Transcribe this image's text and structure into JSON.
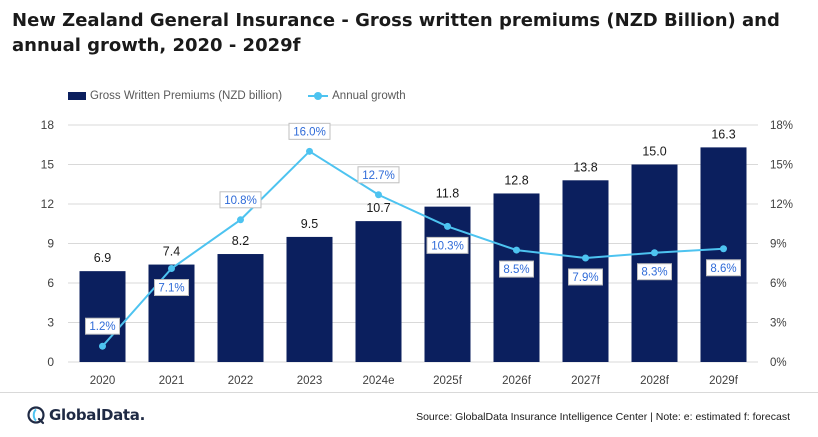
{
  "title": "New Zealand General Insurance - Gross written premiums (NZD Billion) and annual growth, 2020 - 2029f",
  "legend": {
    "bar_label": "Gross Written Premiums (NZD billion)",
    "line_label": "Annual growth"
  },
  "source": "Source: GlobalData Insurance Intelligence Center | Note: e: estimated f: forecast",
  "logo_text": "GlobalData.",
  "colors": {
    "bar": "#0b1f5e",
    "line": "#4dc3f0",
    "point_label_text": "#2f6bd8"
  },
  "chart_data": {
    "type": "bar",
    "title": "New Zealand General Insurance - Gross written premiums (NZD Billion) and annual growth, 2020 - 2029f",
    "categories": [
      "2020",
      "2021",
      "2022",
      "2023",
      "2024e",
      "2025f",
      "2026f",
      "2027f",
      "2028f",
      "2029f"
    ],
    "series": [
      {
        "name": "Gross Written Premiums (NZD billion)",
        "type": "bar",
        "axis": "left",
        "values": [
          6.9,
          7.4,
          8.2,
          9.5,
          10.7,
          11.8,
          12.8,
          13.8,
          15.0,
          16.3
        ],
        "labels": [
          "6.9",
          "7.4",
          "8.2",
          "9.5",
          "10.7",
          "11.8",
          "12.8",
          "13.8",
          "15.0",
          "16.3"
        ]
      },
      {
        "name": "Annual growth",
        "type": "line",
        "axis": "right",
        "values": [
          1.2,
          7.1,
          10.8,
          16.0,
          12.7,
          10.3,
          8.5,
          7.9,
          8.3,
          8.6
        ],
        "labels": [
          "1.2%",
          "7.1%",
          "10.8%",
          "16.0%",
          "12.7%",
          "10.3%",
          "8.5%",
          "7.9%",
          "8.3%",
          "8.6%"
        ]
      }
    ],
    "y_left": {
      "min": 0,
      "max": 18,
      "ticks": [
        "0",
        "3",
        "6",
        "9",
        "12",
        "15",
        "18"
      ]
    },
    "y_right": {
      "min": 0,
      "max": 18,
      "ticks": [
        "0%",
        "3%",
        "6%",
        "9%",
        "12%",
        "15%",
        "18%"
      ]
    },
    "grid": true,
    "legend_position": "top-left"
  }
}
